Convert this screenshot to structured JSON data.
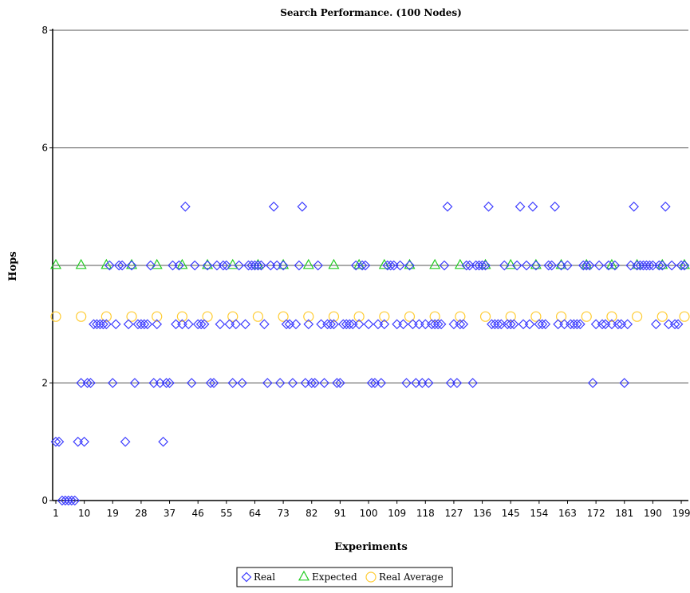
{
  "chart_data": {
    "type": "scatter",
    "title": "Search Performance. (100 Nodes)",
    "xlabel": "Experiments",
    "ylabel": "Hops",
    "xlim": [
      1,
      200
    ],
    "ylim": [
      0,
      8
    ],
    "x_ticks": [
      "1",
      "10",
      "19",
      "28",
      "37",
      "46",
      "55",
      "64",
      "73",
      "82",
      "91",
      "100",
      "109",
      "118",
      "127",
      "136",
      "145",
      "154",
      "163",
      "172",
      "181",
      "190",
      "199"
    ],
    "y_ticks": [
      "0",
      "2",
      "6",
      "8"
    ],
    "y_tick_values": [
      0,
      2,
      6,
      8
    ],
    "grid": "horizontal",
    "legend_position": "bottom-center",
    "colors": {
      "real": "#3a3aff",
      "expected": "#22cc22",
      "average": "#ffcc33"
    },
    "series": [
      {
        "name": "Real",
        "marker": "diamond",
        "x": [
          1,
          2,
          3,
          4,
          5,
          6,
          7,
          8,
          9,
          10,
          11,
          12,
          13,
          14,
          15,
          16,
          17,
          18,
          19,
          20,
          21,
          22,
          23,
          24,
          25,
          26,
          27,
          28,
          29,
          30,
          31,
          32,
          33,
          34,
          35,
          36,
          37,
          38,
          39,
          40,
          41,
          42,
          43,
          44,
          45,
          46,
          47,
          48,
          49,
          50,
          51,
          52,
          53,
          54,
          55,
          56,
          57,
          58,
          59,
          60,
          61,
          62,
          63,
          64,
          65,
          66,
          67,
          68,
          69,
          70,
          71,
          72,
          73,
          74,
          75,
          76,
          77,
          78,
          79,
          80,
          81,
          82,
          83,
          84,
          85,
          86,
          87,
          88,
          89,
          90,
          91,
          92,
          93,
          94,
          95,
          96,
          97,
          98,
          99,
          100,
          101,
          102,
          103,
          104,
          105,
          106,
          107,
          108,
          109,
          110,
          111,
          112,
          113,
          114,
          115,
          116,
          117,
          118,
          119,
          120,
          121,
          122,
          123,
          124,
          125,
          126,
          127,
          128,
          129,
          130,
          131,
          132,
          133,
          134,
          135,
          136,
          137,
          138,
          139,
          140,
          141,
          142,
          143,
          144,
          145,
          146,
          147,
          148,
          149,
          150,
          151,
          152,
          153,
          154,
          155,
          156,
          157,
          158,
          159,
          160,
          161,
          162,
          163,
          164,
          165,
          166,
          167,
          168,
          169,
          170,
          171,
          172,
          173,
          174,
          175,
          176,
          177,
          178,
          179,
          180,
          181,
          182,
          183,
          184,
          185,
          186,
          187,
          188,
          189,
          190,
          191,
          192,
          193,
          194,
          195,
          196,
          197,
          198,
          199,
          200
        ],
        "values": [
          1,
          1,
          0,
          0,
          0,
          0,
          0,
          1,
          2,
          1,
          2,
          2,
          3,
          3,
          3,
          3,
          3,
          4,
          2,
          3,
          4,
          4,
          1,
          3,
          4,
          2,
          3,
          3,
          3,
          3,
          4,
          2,
          3,
          2,
          1,
          2,
          2,
          4,
          3,
          4,
          3,
          5,
          3,
          2,
          4,
          3,
          3,
          3,
          4,
          2,
          2,
          4,
          3,
          4,
          4,
          3,
          2,
          3,
          4,
          2,
          3,
          4,
          4,
          4,
          4,
          4,
          3,
          2,
          4,
          5,
          4,
          2,
          4,
          3,
          3,
          2,
          3,
          4,
          5,
          2,
          3,
          2,
          2,
          4,
          3,
          2,
          3,
          3,
          3,
          2,
          2,
          3,
          3,
          3,
          3,
          4,
          3,
          4,
          4,
          3,
          2,
          2,
          3,
          2,
          3,
          4,
          4,
          4,
          3,
          4,
          3,
          2,
          4,
          3,
          2,
          3,
          2,
          3,
          2,
          3,
          3,
          3,
          3,
          4,
          5,
          2,
          3,
          2,
          3,
          3,
          4,
          4,
          2,
          4,
          4,
          4,
          4,
          5,
          3,
          3,
          3,
          3,
          4,
          3,
          3,
          3,
          4,
          5,
          3,
          4,
          3,
          5,
          4,
          3,
          3,
          3,
          4,
          4,
          5,
          3,
          4,
          3,
          4,
          3,
          3,
          3,
          3,
          4,
          4,
          4,
          2,
          3,
          4,
          3,
          3,
          4,
          3,
          4,
          3,
          3,
          2,
          3,
          4,
          5,
          4,
          4,
          4,
          4,
          4,
          4,
          3,
          4,
          4,
          5,
          3,
          4,
          3,
          3,
          4,
          4
        ]
      },
      {
        "name": "Expected",
        "marker": "triangle",
        "x": [
          1,
          9,
          17,
          25,
          33,
          41,
          49,
          57,
          65,
          73,
          81,
          89,
          97,
          105,
          113,
          121,
          129,
          137,
          145,
          153,
          161,
          169,
          177,
          185,
          193,
          200
        ],
        "values": [
          4,
          4,
          4,
          4,
          4,
          4,
          4,
          4,
          4,
          4,
          4,
          4,
          4,
          4,
          4,
          4,
          4,
          4,
          4,
          4,
          4,
          4,
          4,
          4,
          4,
          4
        ]
      },
      {
        "name": "Real Average",
        "marker": "circle",
        "x": [
          1,
          9,
          17,
          25,
          33,
          41,
          49,
          57,
          65,
          73,
          81,
          89,
          97,
          105,
          113,
          121,
          129,
          137,
          145,
          153,
          161,
          169,
          177,
          185,
          193,
          200
        ],
        "values": [
          3.13,
          3.13,
          3.13,
          3.13,
          3.13,
          3.13,
          3.13,
          3.13,
          3.13,
          3.13,
          3.13,
          3.13,
          3.13,
          3.13,
          3.13,
          3.13,
          3.13,
          3.13,
          3.13,
          3.13,
          3.13,
          3.13,
          3.13,
          3.13,
          3.13,
          3.13
        ]
      }
    ]
  }
}
